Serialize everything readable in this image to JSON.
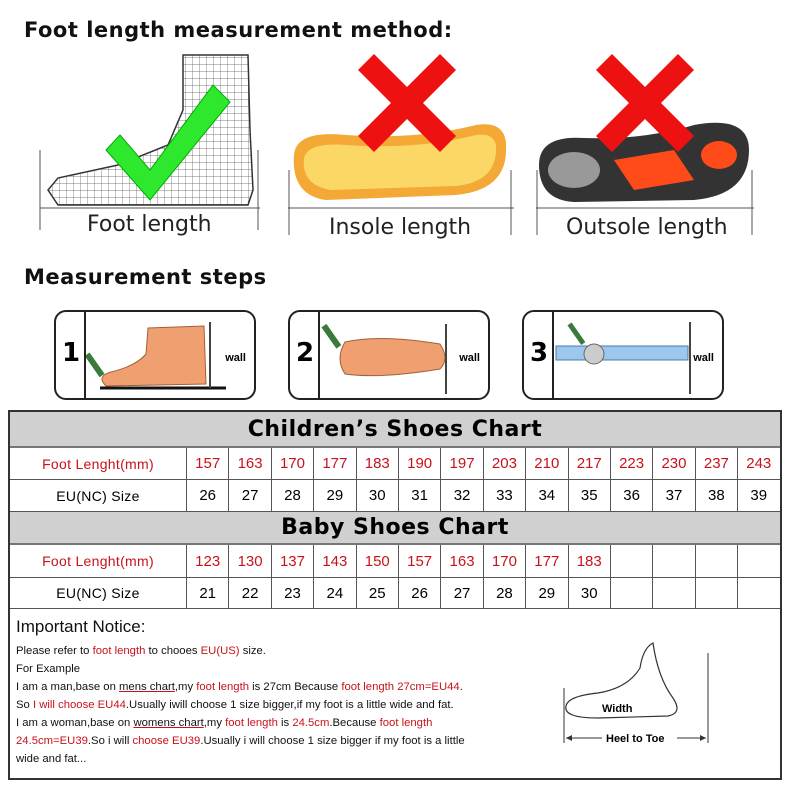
{
  "method": {
    "title": "Foot length measurement method:",
    "items": [
      {
        "label": "Foot length",
        "mark": "check-icon",
        "color": "#22dd22"
      },
      {
        "label": "Insole length",
        "mark": "cross-icon",
        "color": "#ee1111"
      },
      {
        "label": "Outsole length",
        "mark": "cross-icon",
        "color": "#ee1111"
      }
    ]
  },
  "steps": {
    "title": "Measurement steps",
    "items": [
      {
        "number": "1",
        "wall": "wall"
      },
      {
        "number": "2",
        "wall": "wall"
      },
      {
        "number": "3",
        "wall": "wall"
      }
    ]
  },
  "children_chart": {
    "title": "Children’s Shoes Chart",
    "row1_label": "Foot Lenght(mm)",
    "row2_label": "EU(NC) Size",
    "foot_length": [
      "157",
      "163",
      "170",
      "177",
      "183",
      "190",
      "197",
      "203",
      "210",
      "217",
      "223",
      "230",
      "237",
      "243"
    ],
    "eu_size": [
      "26",
      "27",
      "28",
      "29",
      "30",
      "31",
      "32",
      "33",
      "34",
      "35",
      "36",
      "37",
      "38",
      "39"
    ]
  },
  "baby_chart": {
    "title": "Baby Shoes Chart",
    "row1_label": "Foot Lenght(mm)",
    "row2_label": "EU(NC) Size",
    "foot_length": [
      "123",
      "130",
      "137",
      "143",
      "150",
      "157",
      "163",
      "170",
      "177",
      "183",
      "",
      "",
      "",
      ""
    ],
    "eu_size": [
      "21",
      "22",
      "23",
      "24",
      "25",
      "26",
      "27",
      "28",
      "29",
      "30",
      "",
      "",
      "",
      ""
    ]
  },
  "notice": {
    "title": "Important Notice:",
    "l1": [
      "Please refer to ",
      "foot length",
      " to chooes ",
      "EU(US)",
      " size."
    ],
    "l2": "For Example",
    "l3": [
      "I am a man,base on ",
      "mens chart",
      ",my ",
      "foot length",
      " is 27cm Because ",
      "foot length 27cm=EU44",
      "."
    ],
    "l4": [
      "So ",
      "I will choose EU44",
      ".Usually iwill choose 1 size bigger,if my foot is a little wide and fat."
    ],
    "l5": [
      "I am a woman,base on ",
      "womens chart",
      ",my ",
      "foot length",
      " is ",
      "24.5cm",
      ".Because ",
      "foot length"
    ],
    "l6": [
      "24.5cm=EU39",
      ".So i will ",
      "choose EU39",
      ".Usually i will choose 1 size bigger if my foot is a little"
    ],
    "l7": "wide and fat...",
    "diagram": {
      "width": "Width",
      "heel_to_toe": "Heel to Toe"
    }
  },
  "colors": {
    "accent_red": "#c8121b",
    "header_gray": "#d0d0d0"
  }
}
